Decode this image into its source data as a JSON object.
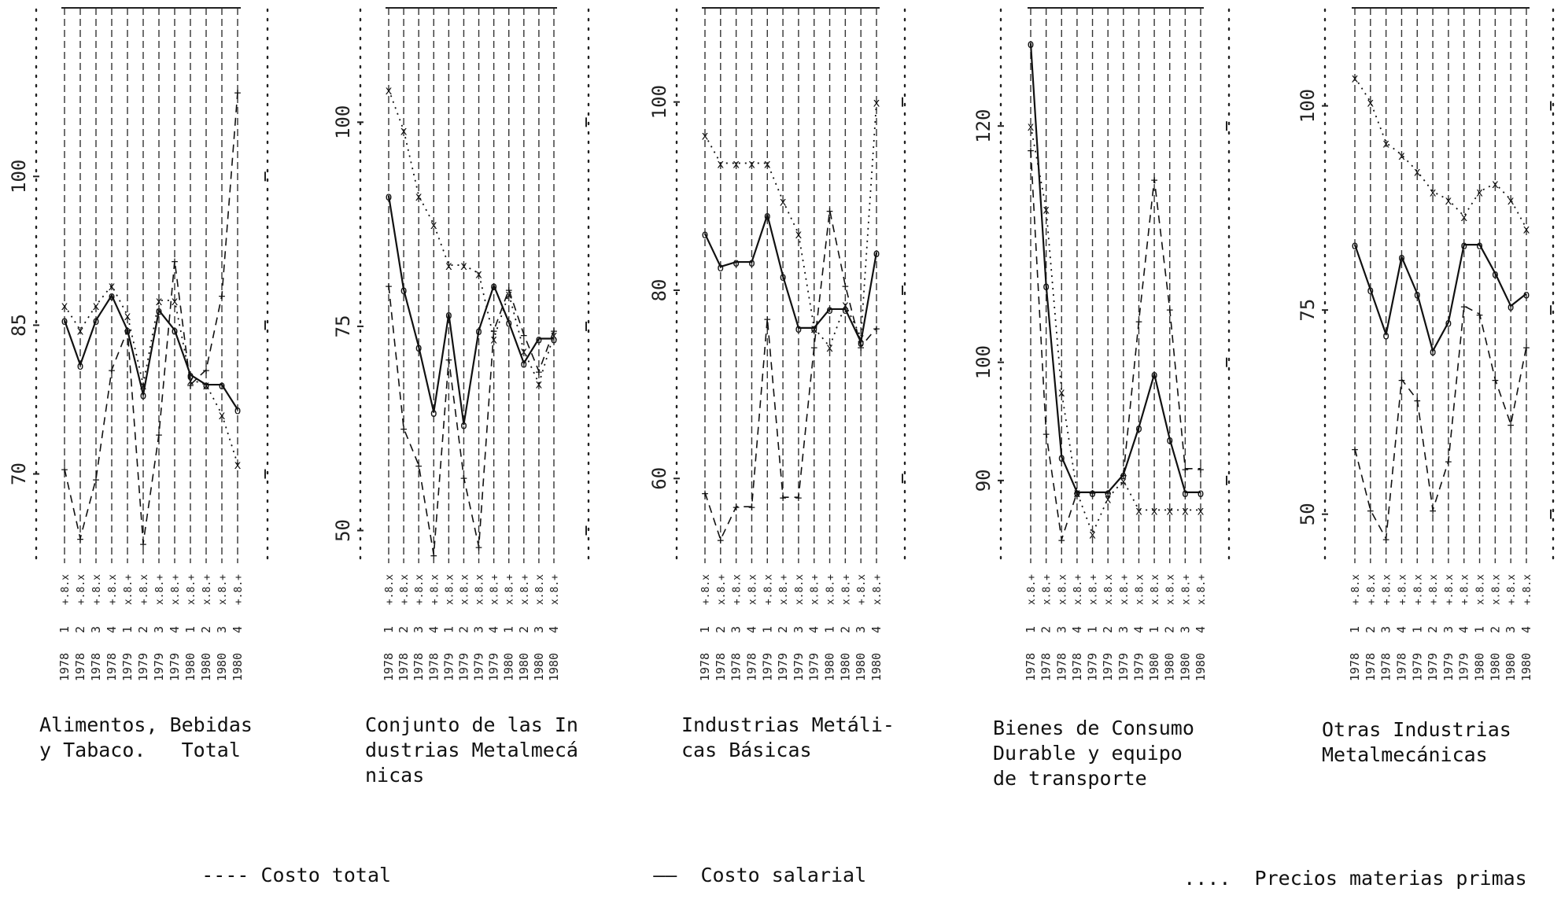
{
  "legend": [
    {
      "key": "costo_total",
      "symbol": "----",
      "label": "Costo total"
    },
    {
      "key": "costo_salarial",
      "symbol": "——",
      "label": "Costo salarial"
    },
    {
      "key": "precios_mp",
      "symbol": "....",
      "label": "Precios materias primas"
    }
  ],
  "chart_data": [
    {
      "type": "line",
      "title_lines": [
        "Alimentos, Bebidas",
        "y Tabaco.   Total"
      ],
      "quarters": [
        "1",
        "2",
        "3",
        "4",
        "1",
        "2",
        "3",
        "4",
        "1",
        "2",
        "3",
        "4"
      ],
      "years": [
        "1978",
        "1978",
        "1978",
        "1978",
        "1979",
        "1979",
        "1979",
        "1979",
        "1980",
        "1980",
        "1980",
        "1980"
      ],
      "x_markers": [
        "+.8.x",
        "+.8.x",
        "+.8.x",
        "+.8.x",
        "x.8.+",
        "+.8.x",
        "x.8.+",
        "x.8.+",
        "x.8.+",
        "x.8.+",
        "x.8.+",
        "+.8.+"
      ],
      "y_ticks": [
        70,
        85,
        100
      ],
      "ylim": [
        61,
        117
      ],
      "series": [
        {
          "key": "costo_total",
          "values": [
            70.5,
            63.5,
            69.5,
            80.5,
            84.5,
            63.0,
            74.0,
            91.5,
            79.0,
            80.5,
            88.0,
            108.5
          ]
        },
        {
          "key": "costo_salarial",
          "values": [
            85.5,
            81.0,
            85.5,
            88.0,
            84.5,
            78.0,
            86.5,
            84.5,
            80.0,
            79.0,
            79.0,
            76.5
          ]
        },
        {
          "key": "precios_mp",
          "values": [
            87.0,
            84.5,
            87.0,
            89.0,
            86.0,
            79.0,
            87.5,
            87.5,
            79.5,
            79.0,
            76.0,
            71.0
          ]
        }
      ]
    },
    {
      "type": "line",
      "title_lines": [
        "Conjunto de las In",
        "dustrias Metalmecá",
        "nicas"
      ],
      "quarters": [
        "1",
        "2",
        "3",
        "4",
        "1",
        "2",
        "3",
        "4",
        "1",
        "2",
        "3",
        "4"
      ],
      "years": [
        "1978",
        "1978",
        "1978",
        "1978",
        "1979",
        "1979",
        "1979",
        "1979",
        "1980",
        "1980",
        "1980",
        "1980"
      ],
      "x_markers": [
        "+.8.x",
        "+.8.x",
        "+.8.x",
        "+.8.x",
        "x.8.x",
        "x.8.x",
        "x.8.x",
        "x.8.+",
        "x.8.+",
        "x.8.+",
        "x.8.x",
        "x.8.+"
      ],
      "y_ticks": [
        50,
        75,
        100
      ],
      "ylim": [
        46,
        114
      ],
      "series": [
        {
          "key": "costo_total",
          "values": [
            80.0,
            62.5,
            58.0,
            47.0,
            71.0,
            56.5,
            48.0,
            74.5,
            79.5,
            74.0,
            69.5,
            74.5
          ]
        },
        {
          "key": "costo_salarial",
          "values": [
            91.0,
            79.5,
            72.5,
            64.5,
            76.5,
            63.0,
            74.5,
            80.0,
            75.5,
            70.5,
            73.5,
            73.5
          ]
        },
        {
          "key": "precios_mp",
          "values": [
            104.0,
            99.0,
            91.0,
            87.5,
            82.5,
            82.5,
            81.5,
            73.5,
            79.0,
            72.0,
            68.0,
            74.0
          ]
        }
      ]
    },
    {
      "type": "line",
      "title_lines": [
        "Industrias Metáli-",
        "cas Básicas"
      ],
      "quarters": [
        "1",
        "2",
        "3",
        "4",
        "1",
        "2",
        "3",
        "4",
        "1",
        "2",
        "3",
        "4"
      ],
      "years": [
        "1978",
        "1978",
        "1978",
        "1978",
        "1979",
        "1979",
        "1979",
        "1979",
        "1980",
        "1980",
        "1980",
        "1980"
      ],
      "x_markers": [
        "+.8.x",
        "x.8.+",
        "+.8.x",
        "x.8.x",
        "+.8.x",
        "x.8.+",
        "x.8.x",
        "x.8.+",
        "x.8.+",
        "x.8.+",
        "+.8.x",
        "x.8.+"
      ],
      "y_ticks": [
        60,
        80,
        100
      ],
      "ylim": [
        51,
        110
      ],
      "series": [
        {
          "key": "costo_total",
          "values": [
            58.5,
            53.5,
            57.0,
            57.0,
            77.0,
            58.0,
            58.0,
            74.0,
            88.5,
            80.5,
            74.0,
            76.0
          ]
        },
        {
          "key": "costo_salarial",
          "values": [
            86.0,
            82.5,
            83.0,
            83.0,
            88.0,
            81.5,
            76.0,
            76.0,
            78.0,
            78.0,
            74.5,
            84.0
          ]
        },
        {
          "key": "precios_mp",
          "values": [
            96.5,
            93.5,
            93.5,
            93.5,
            93.5,
            89.5,
            86.0,
            76.0,
            74.0,
            78.5,
            75.0,
            100.0
          ]
        }
      ]
    },
    {
      "type": "line",
      "title_lines": [
        "Bienes de Consumo",
        "Durable y equipo",
        "de transporte"
      ],
      "quarters": [
        "1",
        "2",
        "3",
        "4",
        "1",
        "2",
        "3",
        "4",
        "1",
        "2",
        "3",
        "4"
      ],
      "years": [
        "1978",
        "1978",
        "1978",
        "1978",
        "1979",
        "1979",
        "1979",
        "1979",
        "1980",
        "1980",
        "1980",
        "1980"
      ],
      "x_markers": [
        "x.8.+",
        "x.8.+",
        "x.8.x",
        "x.8.+",
        "x.8.+",
        "x.8.x",
        "x.8.+",
        "x.8.x",
        "x.8.x",
        "x.8.x",
        "x.8.+",
        "x.8.+"
      ],
      "y_ticks": [
        90,
        100,
        120
      ],
      "ylim": [
        83,
        130
      ],
      "series": [
        {
          "key": "costo_total",
          "values": [
            118.0,
            94.0,
            85.0,
            89.0,
            89.0,
            89.0,
            90.5,
            103.5,
            115.5,
            104.5,
            91.0,
            91.0
          ]
        },
        {
          "key": "costo_salarial",
          "values": [
            127.0,
            106.5,
            92.0,
            89.0,
            89.0,
            89.0,
            90.5,
            94.5,
            99.0,
            93.5,
            89.0,
            89.0
          ]
        },
        {
          "key": "precios_mp",
          "values": [
            120.0,
            113.0,
            97.5,
            89.0,
            85.5,
            88.5,
            90.0,
            87.5,
            87.5,
            87.5,
            87.5,
            87.5
          ]
        }
      ]
    },
    {
      "type": "line",
      "title_lines": [
        "Otras Industrias",
        "Metalmecánicas"
      ],
      "quarters": [
        "1",
        "2",
        "3",
        "4",
        "1",
        "2",
        "3",
        "4",
        "1",
        "2",
        "3",
        "4"
      ],
      "years": [
        "1978",
        "1978",
        "1978",
        "1978",
        "1979",
        "1979",
        "1979",
        "1979",
        "1980",
        "1980",
        "1980",
        "1980"
      ],
      "x_markers": [
        "+.8.x",
        "+.8.x",
        "+.8.x",
        "+.8.x",
        "+.8.x",
        "+.8.x",
        "+.8.x",
        "+.8.x",
        "x.8.x",
        "x.8.x",
        "+.8.x",
        "+.8.x"
      ],
      "y_ticks": [
        50,
        75,
        100
      ],
      "ylim": [
        44,
        112
      ],
      "series": [
        {
          "key": "costo_total",
          "values": [
            58.0,
            50.5,
            47.0,
            66.5,
            64.0,
            50.5,
            56.5,
            75.5,
            74.5,
            66.5,
            61.0,
            70.5
          ]
        },
        {
          "key": "costo_salarial",
          "values": [
            83.0,
            77.5,
            72.0,
            81.5,
            77.0,
            70.0,
            73.5,
            83.0,
            83.0,
            79.5,
            75.5,
            77.0
          ]
        },
        {
          "key": "precios_mp",
          "values": [
            103.5,
            100.5,
            95.5,
            94.0,
            92.0,
            89.5,
            88.5,
            86.5,
            89.5,
            90.5,
            88.5,
            85.0
          ]
        }
      ]
    }
  ]
}
